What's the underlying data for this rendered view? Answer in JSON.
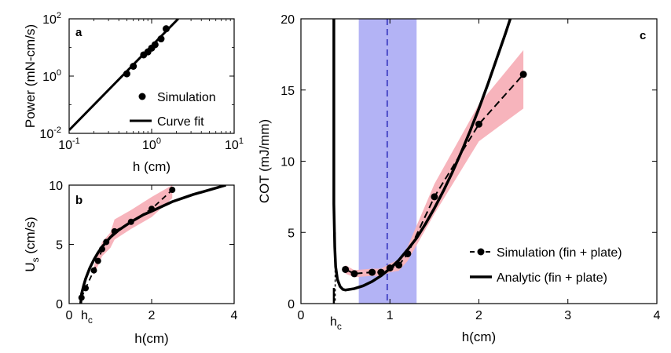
{
  "chart_data": [
    {
      "panel": "a",
      "type": "scatter",
      "panel_label": "a",
      "xscale": "log",
      "yscale": "log",
      "xlim": [
        0.1,
        10
      ],
      "ylim": [
        0.01,
        100
      ],
      "xticks": [
        {
          "v": 0.1,
          "b": "10",
          "e": "-1"
        },
        {
          "v": 1,
          "b": "10",
          "e": "0"
        },
        {
          "v": 10,
          "b": "10",
          "e": "1"
        }
      ],
      "yticks": [
        {
          "v": 0.01,
          "b": "10",
          "e": "-2"
        },
        {
          "v": 1,
          "b": "10",
          "e": "0"
        },
        {
          "v": 100,
          "b": "10",
          "e": "2"
        }
      ],
      "xlabel": "h (cm)",
      "ylabel": "Power (mN-cm/s)",
      "legend": [
        "Simulation",
        "Curve fit"
      ],
      "legend_position": "bottom-right",
      "simulation": {
        "x": [
          0.5,
          0.6,
          0.8,
          0.9,
          1.0,
          1.1,
          1.3,
          1.5
        ],
        "y": [
          1.2,
          2.2,
          5.5,
          7.0,
          9.5,
          12.5,
          20.0,
          45.0
        ]
      },
      "curve_fit": {
        "x": [
          0.1,
          2.1
        ],
        "y": [
          0.013,
          100
        ]
      }
    },
    {
      "panel": "b",
      "type": "line",
      "panel_label": "b",
      "xlim": [
        0,
        4
      ],
      "ylim": [
        0,
        10
      ],
      "xticks": [
        0,
        2,
        4
      ],
      "yticks": [
        0,
        5,
        10
      ],
      "xlabel": "h(cm)",
      "ylabel": "U",
      "ylabel_sub": "s",
      "ylabel_unit": "(cm/s)",
      "hc_label": "h",
      "hc_sub": "c",
      "simulation": {
        "x": [
          0.3,
          0.4,
          0.6,
          0.7,
          0.8,
          0.9,
          1.1,
          1.5,
          2.0,
          2.5
        ],
        "y": [
          0.5,
          1.3,
          2.8,
          3.6,
          4.6,
          5.2,
          6.1,
          6.9,
          8.0,
          9.6
        ]
      },
      "band": {
        "x": [
          0.6,
          0.8,
          1.0,
          1.1,
          1.5,
          2.0,
          2.5
        ],
        "low": [
          2.4,
          4.0,
          4.7,
          5.4,
          6.3,
          7.3,
          8.9
        ],
        "high": [
          3.2,
          5.2,
          6.0,
          7.1,
          7.9,
          9.0,
          10.0
        ]
      },
      "analytic": {
        "x": [
          0.28,
          0.3,
          0.35,
          0.4,
          0.5,
          0.6,
          0.7,
          0.8,
          1.0,
          1.2,
          1.5,
          1.8,
          2.0,
          2.5,
          3.0,
          3.5,
          3.8
        ],
        "y": [
          0.0,
          0.8,
          1.5,
          2.1,
          3.0,
          3.7,
          4.3,
          4.8,
          5.6,
          6.2,
          6.9,
          7.5,
          7.8,
          8.6,
          9.2,
          9.7,
          10.0
        ]
      }
    },
    {
      "panel": "c",
      "type": "line",
      "panel_label": "c",
      "xlim": [
        0,
        4
      ],
      "ylim": [
        0,
        20
      ],
      "xticks": [
        0,
        1,
        2,
        3,
        4
      ],
      "yticks": [
        0,
        5,
        10,
        15,
        20
      ],
      "xlabel": "h(cm)",
      "ylabel": "COT (mJ/mm)",
      "hc_label": "h",
      "hc_sub": "c",
      "shaded_region": {
        "x_range": [
          0.65,
          1.3
        ],
        "dashed_line_x": 0.97,
        "color": "#b3b3f5",
        "line_color": "#4a4ac8"
      },
      "legend": [
        "Simulation (fin + plate)",
        "Analytic (fin + plate)"
      ],
      "legend_position": "bottom-right",
      "simulation": {
        "x": [
          0.5,
          0.6,
          0.8,
          0.9,
          1.0,
          1.1,
          1.2,
          1.5,
          2.0,
          2.5
        ],
        "y": [
          2.4,
          2.1,
          2.2,
          2.2,
          2.5,
          2.7,
          3.5,
          7.5,
          12.6,
          16.1
        ]
      },
      "band": {
        "x": [
          0.5,
          0.6,
          0.8,
          0.9,
          1.0,
          1.1,
          1.2,
          1.5,
          2.0,
          2.5
        ],
        "low": [
          2.1,
          1.85,
          1.95,
          1.95,
          2.2,
          2.3,
          3.0,
          6.3,
          11.4,
          13.7
        ],
        "high": [
          2.7,
          2.35,
          2.45,
          2.45,
          2.8,
          3.1,
          4.0,
          8.4,
          14.0,
          17.8
        ]
      },
      "analytic": {
        "x": [
          0.37,
          0.37,
          0.38,
          0.39,
          0.41,
          0.44,
          0.47,
          0.5,
          0.6,
          0.7,
          0.8,
          0.9,
          1.0,
          1.1,
          1.2,
          1.3,
          1.4,
          1.5,
          1.6,
          1.7,
          1.8,
          1.9,
          2.0,
          2.1,
          2.2,
          2.3,
          2.4,
          2.5
        ],
        "y": [
          20,
          7.0,
          4.0,
          2.6,
          1.7,
          1.2,
          1.0,
          0.95,
          1.05,
          1.25,
          1.55,
          1.95,
          2.45,
          3.05,
          3.8,
          4.6,
          5.6,
          6.7,
          7.9,
          9.2,
          10.6,
          12.1,
          13.7,
          15.4,
          17.2,
          19.0,
          20.9,
          22.9
        ]
      }
    }
  ]
}
